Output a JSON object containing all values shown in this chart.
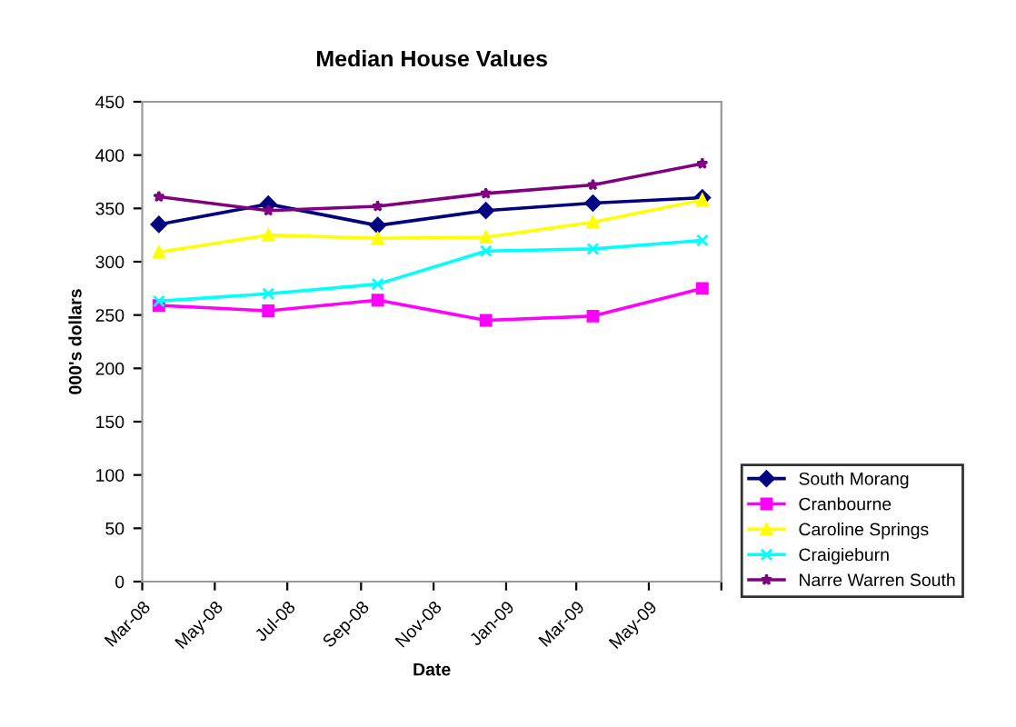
{
  "chart_data": {
    "type": "line",
    "title": "Median House Values",
    "xlabel": "Date",
    "ylabel": "000's dollars",
    "x": [
      "2008-03-15",
      "2008-06-15",
      "2008-09-15",
      "2008-12-15",
      "2009-03-15",
      "2009-06-15"
    ],
    "series": [
      {
        "name": "South Morang",
        "color": "#000080",
        "marker": "diamond",
        "values": [
          335,
          354,
          334,
          348,
          355,
          360
        ]
      },
      {
        "name": "Cranbourne",
        "color": "#ff00ff",
        "marker": "square",
        "values": [
          259,
          254,
          264,
          245,
          249,
          275
        ]
      },
      {
        "name": "Caroline Springs",
        "color": "#ffff00",
        "marker": "triangle",
        "values": [
          309,
          325,
          322,
          323,
          337,
          358
        ]
      },
      {
        "name": "Craigieburn",
        "color": "#00ffff",
        "marker": "cross",
        "values": [
          263,
          270,
          279,
          310,
          312,
          320
        ]
      },
      {
        "name": "Narre Warren South",
        "color": "#800080",
        "marker": "star",
        "values": [
          361,
          348,
          352,
          364,
          372,
          392
        ]
      }
    ],
    "xlim": [
      "2008-03-01",
      "2009-07-01"
    ],
    "xticks": [
      {
        "value": "2008-03-01",
        "label": "Mar-08"
      },
      {
        "value": "2008-05-01",
        "label": "May-08"
      },
      {
        "value": "2008-07-01",
        "label": "Jul-08"
      },
      {
        "value": "2008-09-01",
        "label": "Sep-08"
      },
      {
        "value": "2008-11-01",
        "label": "Nov-08"
      },
      {
        "value": "2009-01-01",
        "label": "Jan-09"
      },
      {
        "value": "2009-03-01",
        "label": "Mar-09"
      },
      {
        "value": "2009-05-01",
        "label": "May-09"
      },
      {
        "value": "2009-07-01",
        "label": null
      }
    ],
    "ylim": [
      0,
      450
    ],
    "yticks": [
      0,
      50,
      100,
      150,
      200,
      250,
      300,
      350,
      400,
      450
    ],
    "grid": false,
    "legend": "bottom right",
    "line_style": "solid"
  }
}
